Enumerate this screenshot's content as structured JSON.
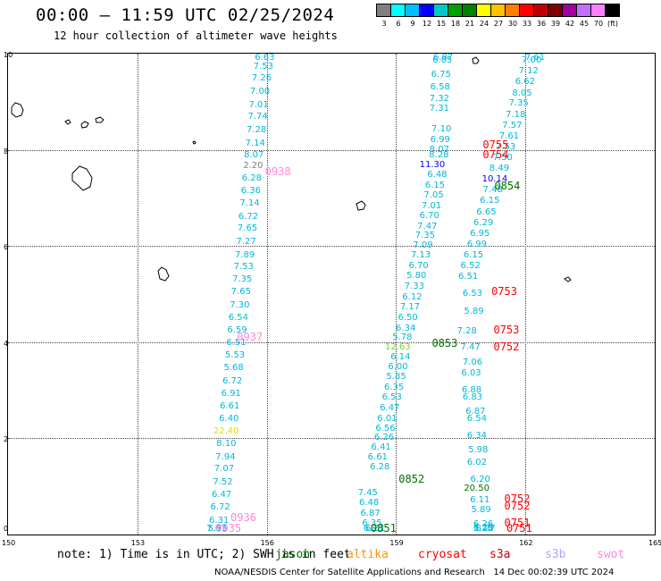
{
  "title": "00:00 – 11:59 UTC 02/25/2024",
  "subtitle": "12 hour collection of altimeter wave heights",
  "legend": {
    "colors": [
      "#808080",
      "#00ffff",
      "#00bfff",
      "#0000ff",
      "#00c8c8",
      "#00a000",
      "#008000",
      "#ffff00",
      "#ffc000",
      "#ff8000",
      "#ff0000",
      "#c00000",
      "#800000",
      "#a000a0",
      "#c070ff",
      "#ff80ff",
      "#000000"
    ],
    "labels": [
      "3",
      "6",
      "9",
      "12",
      "15",
      "18",
      "21",
      "24",
      "27",
      "30",
      "33",
      "36",
      "39",
      "42",
      "45",
      "70",
      "(ft)"
    ]
  },
  "map": {
    "lon_labels": [
      "150",
      "153",
      "156",
      "159",
      "162",
      "165"
    ],
    "lat_labels": [
      "0",
      "2",
      "4",
      "6",
      "8",
      "10"
    ],
    "lon_range": [
      150,
      165
    ],
    "lat_range": [
      0,
      10
    ]
  },
  "colors": {
    "cyan": "#00b8d8",
    "blue": "#0000ff",
    "yellow": "#e0e000",
    "lime": "#70d030",
    "jason": "#007000",
    "altika": "#ff9000",
    "cryosat": "#ff0000",
    "s3a": "#d00000",
    "s3b": "#b8a0ff",
    "swot": "#ff88dd",
    "grey": "#808080"
  },
  "track_a": [
    {
      "v": "6.63",
      "lon": 155.93,
      "lat": 9.98,
      "c": "cyan"
    },
    {
      "v": "7.53",
      "lon": 155.9,
      "lat": 9.73,
      "c": "cyan"
    },
    {
      "v": "7.26",
      "lon": 155.86,
      "lat": 9.48,
      "c": "cyan"
    },
    {
      "v": "7.00",
      "lon": 155.82,
      "lat": 9.2,
      "c": "cyan"
    },
    {
      "v": "7.01",
      "lon": 155.79,
      "lat": 8.93,
      "c": "cyan"
    },
    {
      "v": "7.74",
      "lon": 155.77,
      "lat": 8.68,
      "c": "cyan"
    },
    {
      "v": "7.28",
      "lon": 155.74,
      "lat": 8.4,
      "c": "cyan"
    },
    {
      "v": "7.14",
      "lon": 155.71,
      "lat": 8.13,
      "c": "cyan"
    },
    {
      "v": "8.07",
      "lon": 155.68,
      "lat": 7.88,
      "c": "cyan"
    },
    {
      "v": "2.20",
      "lon": 155.66,
      "lat": 7.65,
      "c": "grey"
    },
    {
      "v": "6.28",
      "lon": 155.63,
      "lat": 7.4,
      "c": "cyan"
    },
    {
      "v": "6.36",
      "lon": 155.61,
      "lat": 7.13,
      "c": "cyan"
    },
    {
      "v": "7.14",
      "lon": 155.58,
      "lat": 6.87,
      "c": "cyan"
    },
    {
      "v": "6.72",
      "lon": 155.55,
      "lat": 6.6,
      "c": "cyan"
    },
    {
      "v": "7.65",
      "lon": 155.53,
      "lat": 6.35,
      "c": "cyan"
    },
    {
      "v": "7.27",
      "lon": 155.5,
      "lat": 6.08,
      "c": "cyan"
    },
    {
      "v": "7.89",
      "lon": 155.47,
      "lat": 5.8,
      "c": "cyan"
    },
    {
      "v": "7.53",
      "lon": 155.44,
      "lat": 5.55,
      "c": "cyan"
    },
    {
      "v": "7.35",
      "lon": 155.41,
      "lat": 5.3,
      "c": "cyan"
    },
    {
      "v": "7.65",
      "lon": 155.38,
      "lat": 5.03,
      "c": "cyan"
    },
    {
      "v": "7.30",
      "lon": 155.35,
      "lat": 4.75,
      "c": "cyan"
    },
    {
      "v": "6.54",
      "lon": 155.32,
      "lat": 4.5,
      "c": "cyan"
    },
    {
      "v": "6.59",
      "lon": 155.29,
      "lat": 4.23,
      "c": "cyan"
    },
    {
      "v": "6.51",
      "lon": 155.27,
      "lat": 3.97,
      "c": "cyan"
    },
    {
      "v": "5.53",
      "lon": 155.24,
      "lat": 3.72,
      "c": "cyan"
    },
    {
      "v": "5.68",
      "lon": 155.21,
      "lat": 3.45,
      "c": "cyan"
    },
    {
      "v": "6.72",
      "lon": 155.18,
      "lat": 3.18,
      "c": "cyan"
    },
    {
      "v": "6.91",
      "lon": 155.15,
      "lat": 2.92,
      "c": "cyan"
    },
    {
      "v": "6.61",
      "lon": 155.12,
      "lat": 2.65,
      "c": "cyan"
    },
    {
      "v": "6.40",
      "lon": 155.1,
      "lat": 2.4,
      "c": "cyan"
    },
    {
      "v": "22.40",
      "lon": 154.97,
      "lat": 2.13,
      "c": "yellow"
    },
    {
      "v": "8.10",
      "lon": 155.04,
      "lat": 1.87,
      "c": "cyan"
    },
    {
      "v": "7.94",
      "lon": 155.02,
      "lat": 1.6,
      "c": "cyan"
    },
    {
      "v": "7.07",
      "lon": 154.99,
      "lat": 1.35,
      "c": "cyan"
    },
    {
      "v": "7.52",
      "lon": 154.96,
      "lat": 1.08,
      "c": "cyan"
    },
    {
      "v": "6.47",
      "lon": 154.93,
      "lat": 0.82,
      "c": "cyan"
    },
    {
      "v": "6.72",
      "lon": 154.9,
      "lat": 0.55,
      "c": "cyan"
    },
    {
      "v": "6.31",
      "lon": 154.87,
      "lat": 0.28,
      "c": "cyan"
    },
    {
      "v": "5.95",
      "lon": 154.84,
      "lat": 0.02,
      "c": "cyan"
    },
    {
      "v": "7.07",
      "lon": 154.81,
      "lat": -0.23,
      "c": "cyan"
    }
  ],
  "track_b": [
    {
      "v": "7.45",
      "lon": 158.32,
      "lat": 0.85,
      "c": "cyan"
    },
    {
      "v": "6.48",
      "lon": 158.35,
      "lat": 0.65,
      "c": "cyan"
    },
    {
      "v": "6.87",
      "lon": 158.38,
      "lat": 0.43,
      "c": "cyan"
    },
    {
      "v": "6.35",
      "lon": 158.42,
      "lat": 0.22,
      "c": "cyan"
    },
    {
      "v": "6.23",
      "lon": 158.45,
      "lat": 0.0,
      "c": "cyan"
    },
    {
      "v": "6.31",
      "lon": 158.5,
      "lat": -0.2,
      "c": "cyan"
    },
    {
      "v": "6.61",
      "lon": 158.55,
      "lat": 1.6,
      "c": "cyan"
    },
    {
      "v": "6.28",
      "lon": 158.6,
      "lat": 1.4,
      "c": "cyan"
    },
    {
      "v": "6.41",
      "lon": 158.63,
      "lat": 1.8,
      "c": "cyan"
    },
    {
      "v": "6.26",
      "lon": 158.7,
      "lat": 2.0,
      "c": "cyan"
    },
    {
      "v": "6.56",
      "lon": 158.73,
      "lat": 2.2,
      "c": "cyan"
    },
    {
      "v": "6.01",
      "lon": 158.77,
      "lat": 2.4,
      "c": "cyan"
    },
    {
      "v": "6.47",
      "lon": 158.83,
      "lat": 2.62,
      "c": "cyan"
    },
    {
      "v": "6.53",
      "lon": 158.88,
      "lat": 2.85,
      "c": "cyan"
    },
    {
      "v": "6.35",
      "lon": 158.93,
      "lat": 3.05,
      "c": "cyan"
    },
    {
      "v": "5.85",
      "lon": 158.98,
      "lat": 3.27,
      "c": "cyan"
    },
    {
      "v": "6.00",
      "lon": 159.02,
      "lat": 3.47,
      "c": "cyan"
    },
    {
      "v": "6.14",
      "lon": 159.08,
      "lat": 3.68,
      "c": "cyan"
    },
    {
      "v": "12.63",
      "lon": 158.95,
      "lat": 3.88,
      "c": "lime"
    },
    {
      "v": "5.78",
      "lon": 159.12,
      "lat": 4.08,
      "c": "cyan"
    },
    {
      "v": "6.34",
      "lon": 159.2,
      "lat": 4.28,
      "c": "cyan"
    },
    {
      "v": "6.50",
      "lon": 159.25,
      "lat": 4.5,
      "c": "cyan"
    },
    {
      "v": "7.17",
      "lon": 159.3,
      "lat": 4.72,
      "c": "cyan"
    },
    {
      "v": "6.12",
      "lon": 159.35,
      "lat": 4.93,
      "c": "cyan"
    },
    {
      "v": "7.33",
      "lon": 159.4,
      "lat": 5.15,
      "c": "cyan"
    },
    {
      "v": "5.80",
      "lon": 159.45,
      "lat": 5.37,
      "c": "cyan"
    },
    {
      "v": "6.70",
      "lon": 159.5,
      "lat": 5.58,
      "c": "cyan"
    },
    {
      "v": "7.13",
      "lon": 159.55,
      "lat": 5.8,
      "c": "cyan"
    },
    {
      "v": "7.09",
      "lon": 159.6,
      "lat": 6.0,
      "c": "cyan"
    },
    {
      "v": "7.35",
      "lon": 159.65,
      "lat": 6.2,
      "c": "cyan"
    },
    {
      "v": "7.47",
      "lon": 159.7,
      "lat": 6.4,
      "c": "cyan"
    },
    {
      "v": "6.70",
      "lon": 159.75,
      "lat": 6.62,
      "c": "cyan"
    },
    {
      "v": "7.01",
      "lon": 159.8,
      "lat": 6.83,
      "c": "cyan"
    },
    {
      "v": "7.05",
      "lon": 159.85,
      "lat": 7.05,
      "c": "cyan"
    },
    {
      "v": "6.15",
      "lon": 159.88,
      "lat": 7.25,
      "c": "cyan"
    },
    {
      "v": "6.48",
      "lon": 159.93,
      "lat": 7.47,
      "c": "cyan"
    },
    {
      "v": "11.30",
      "lon": 159.75,
      "lat": 7.68,
      "c": "blue"
    },
    {
      "v": "8.28",
      "lon": 159.97,
      "lat": 7.88,
      "c": "cyan"
    },
    {
      "v": "8.07",
      "lon": 159.98,
      "lat": 8.0,
      "c": "cyan"
    },
    {
      "v": "6.99",
      "lon": 160.0,
      "lat": 8.2,
      "c": "cyan"
    },
    {
      "v": "7.10",
      "lon": 160.03,
      "lat": 8.42,
      "c": "cyan"
    },
    {
      "v": "7.31",
      "lon": 159.98,
      "lat": 8.85,
      "c": "cyan"
    },
    {
      "v": "7.32",
      "lon": 159.98,
      "lat": 9.05,
      "c": "cyan"
    },
    {
      "v": "6.58",
      "lon": 160.0,
      "lat": 9.3,
      "c": "cyan"
    },
    {
      "v": "6.75",
      "lon": 160.02,
      "lat": 9.55,
      "c": "cyan"
    },
    {
      "v": "6.85",
      "lon": 160.05,
      "lat": 9.85,
      "c": "cyan"
    },
    {
      "v": "6.87",
      "lon": 160.07,
      "lat": 10.0,
      "c": "cyan"
    }
  ],
  "track_c": [
    {
      "v": "7.61",
      "lon": 162.2,
      "lat": 10.1,
      "c": "cyan"
    },
    {
      "v": "7.00",
      "lon": 162.12,
      "lat": 9.85,
      "c": "cyan"
    },
    {
      "v": "7.12",
      "lon": 162.05,
      "lat": 9.62,
      "c": "cyan"
    },
    {
      "v": "6.62",
      "lon": 161.97,
      "lat": 9.4,
      "c": "cyan"
    },
    {
      "v": "8.05",
      "lon": 161.9,
      "lat": 9.17,
      "c": "cyan"
    },
    {
      "v": "7.35",
      "lon": 161.82,
      "lat": 8.95,
      "c": "cyan"
    },
    {
      "v": "7.18",
      "lon": 161.75,
      "lat": 8.72,
      "c": "cyan"
    },
    {
      "v": "7.57",
      "lon": 161.67,
      "lat": 8.5,
      "c": "cyan"
    },
    {
      "v": "7.61",
      "lon": 161.6,
      "lat": 8.27,
      "c": "cyan"
    },
    {
      "v": "7.53",
      "lon": 161.52,
      "lat": 8.05,
      "c": "cyan"
    },
    {
      "v": "7.50",
      "lon": 161.45,
      "lat": 7.82,
      "c": "cyan"
    },
    {
      "v": "8.49",
      "lon": 161.37,
      "lat": 7.6,
      "c": "cyan"
    },
    {
      "v": "10.14",
      "lon": 161.2,
      "lat": 7.38,
      "c": "blue"
    },
    {
      "v": "7.48",
      "lon": 161.22,
      "lat": 7.15,
      "c": "cyan"
    },
    {
      "v": "6.15",
      "lon": 161.15,
      "lat": 6.93,
      "c": "cyan"
    },
    {
      "v": "6.65",
      "lon": 161.07,
      "lat": 6.7,
      "c": "cyan"
    },
    {
      "v": "6.29",
      "lon": 161.0,
      "lat": 6.47,
      "c": "cyan"
    },
    {
      "v": "6.95",
      "lon": 160.92,
      "lat": 6.25,
      "c": "cyan"
    },
    {
      "v": "6.99",
      "lon": 160.85,
      "lat": 6.02,
      "c": "cyan"
    },
    {
      "v": "6.15",
      "lon": 160.77,
      "lat": 5.8,
      "c": "cyan"
    },
    {
      "v": "6.52",
      "lon": 160.7,
      "lat": 5.57,
      "c": "cyan"
    },
    {
      "v": "6.51",
      "lon": 160.65,
      "lat": 5.35,
      "c": "cyan"
    },
    {
      "v": "6.53",
      "lon": 160.75,
      "lat": 5.0,
      "c": "cyan"
    },
    {
      "v": "5.89",
      "lon": 160.78,
      "lat": 4.62,
      "c": "cyan"
    },
    {
      "v": "7.28",
      "lon": 160.62,
      "lat": 4.22,
      "c": "cyan"
    },
    {
      "v": "7.47",
      "lon": 160.7,
      "lat": 3.88,
      "c": "cyan"
    },
    {
      "v": "7.06",
      "lon": 160.75,
      "lat": 3.57,
      "c": "cyan"
    },
    {
      "v": "6.03",
      "lon": 160.72,
      "lat": 3.35,
      "c": "cyan"
    },
    {
      "v": "6.88",
      "lon": 160.73,
      "lat": 3.0,
      "c": "cyan"
    },
    {
      "v": "6.83",
      "lon": 160.75,
      "lat": 2.85,
      "c": "cyan"
    },
    {
      "v": "6.87",
      "lon": 160.82,
      "lat": 2.55,
      "c": "cyan"
    },
    {
      "v": "6.54",
      "lon": 160.85,
      "lat": 2.4,
      "c": "cyan"
    },
    {
      "v": "6.34",
      "lon": 160.85,
      "lat": 2.05,
      "c": "cyan"
    },
    {
      "v": "5.98",
      "lon": 160.88,
      "lat": 1.75,
      "c": "cyan"
    },
    {
      "v": "6.02",
      "lon": 160.85,
      "lat": 1.48,
      "c": "cyan"
    },
    {
      "v": "6.20",
      "lon": 160.93,
      "lat": 1.13,
      "c": "cyan"
    },
    {
      "v": "20.50",
      "lon": 160.78,
      "lat": 0.95,
      "c": "jason"
    },
    {
      "v": "6.11",
      "lon": 160.92,
      "lat": 0.7,
      "c": "cyan"
    },
    {
      "v": "5.89",
      "lon": 160.95,
      "lat": 0.5,
      "c": "cyan"
    },
    {
      "v": "6.26",
      "lon": 161.0,
      "lat": 0.2,
      "c": "cyan"
    },
    {
      "v": "6.29",
      "lon": 161.0,
      "lat": 0.13,
      "c": "cyan"
    },
    {
      "v": "5.78",
      "lon": 161.0,
      "lat": -0.1,
      "c": "cyan"
    },
    {
      "v": "6.27",
      "lon": 161.05,
      "lat": -0.45,
      "c": "cyan"
    }
  ],
  "times": [
    {
      "t": "0938",
      "lon": 156.25,
      "lat": 7.55,
      "c": "swot"
    },
    {
      "t": "0937",
      "lon": 155.6,
      "lat": 4.1,
      "c": "swot"
    },
    {
      "t": "0936",
      "lon": 155.45,
      "lat": 0.35,
      "c": "swot"
    },
    {
      "t": "0935",
      "lon": 155.1,
      "lat": -0.3,
      "c": "swot"
    },
    {
      "t": "0854",
      "lon": 161.57,
      "lat": 7.25,
      "c": "jason"
    },
    {
      "t": "0853",
      "lon": 160.12,
      "lat": 3.98,
      "c": "jason"
    },
    {
      "t": "0852",
      "lon": 159.35,
      "lat": 1.15,
      "c": "jason"
    },
    {
      "t": "0851",
      "lon": 158.7,
      "lat": 0.1,
      "c": "jason"
    },
    {
      "t": "0755",
      "lon": 161.3,
      "lat": 8.1,
      "c": "cryosat"
    },
    {
      "t": "0754",
      "lon": 161.3,
      "lat": 7.9,
      "c": "cryosat"
    },
    {
      "t": "0753",
      "lon": 161.5,
      "lat": 5.05,
      "c": "cryosat"
    },
    {
      "t": "0753",
      "lon": 161.55,
      "lat": 4.25,
      "c": "cryosat"
    },
    {
      "t": "0752",
      "lon": 161.55,
      "lat": 3.9,
      "c": "cryosat"
    },
    {
      "t": "0752",
      "lon": 161.8,
      "lat": 0.75,
      "c": "cryosat"
    },
    {
      "t": "0752",
      "lon": 161.8,
      "lat": 0.6,
      "c": "cryosat"
    },
    {
      "t": "0751",
      "lon": 161.8,
      "lat": 0.25,
      "c": "cryosat"
    },
    {
      "t": "0751",
      "lon": 161.85,
      "lat": -0.2,
      "c": "cryosat"
    }
  ],
  "note": "note: 1) Time is in UTC; 2) SWH is in feet",
  "satellites": [
    {
      "label": "jason",
      "c": "jason"
    },
    {
      "label": "altika",
      "c": "altika"
    },
    {
      "label": "cryosat",
      "c": "cryosat"
    },
    {
      "label": "s3a",
      "c": "s3a"
    },
    {
      "label": "s3b",
      "c": "s3b"
    },
    {
      "label": "swot",
      "c": "swot"
    }
  ],
  "credit": "NOAA/NESDIS Center for Satellite Applications and Research",
  "credit_date": "14 Dec 00:02:39 UTC 2024"
}
